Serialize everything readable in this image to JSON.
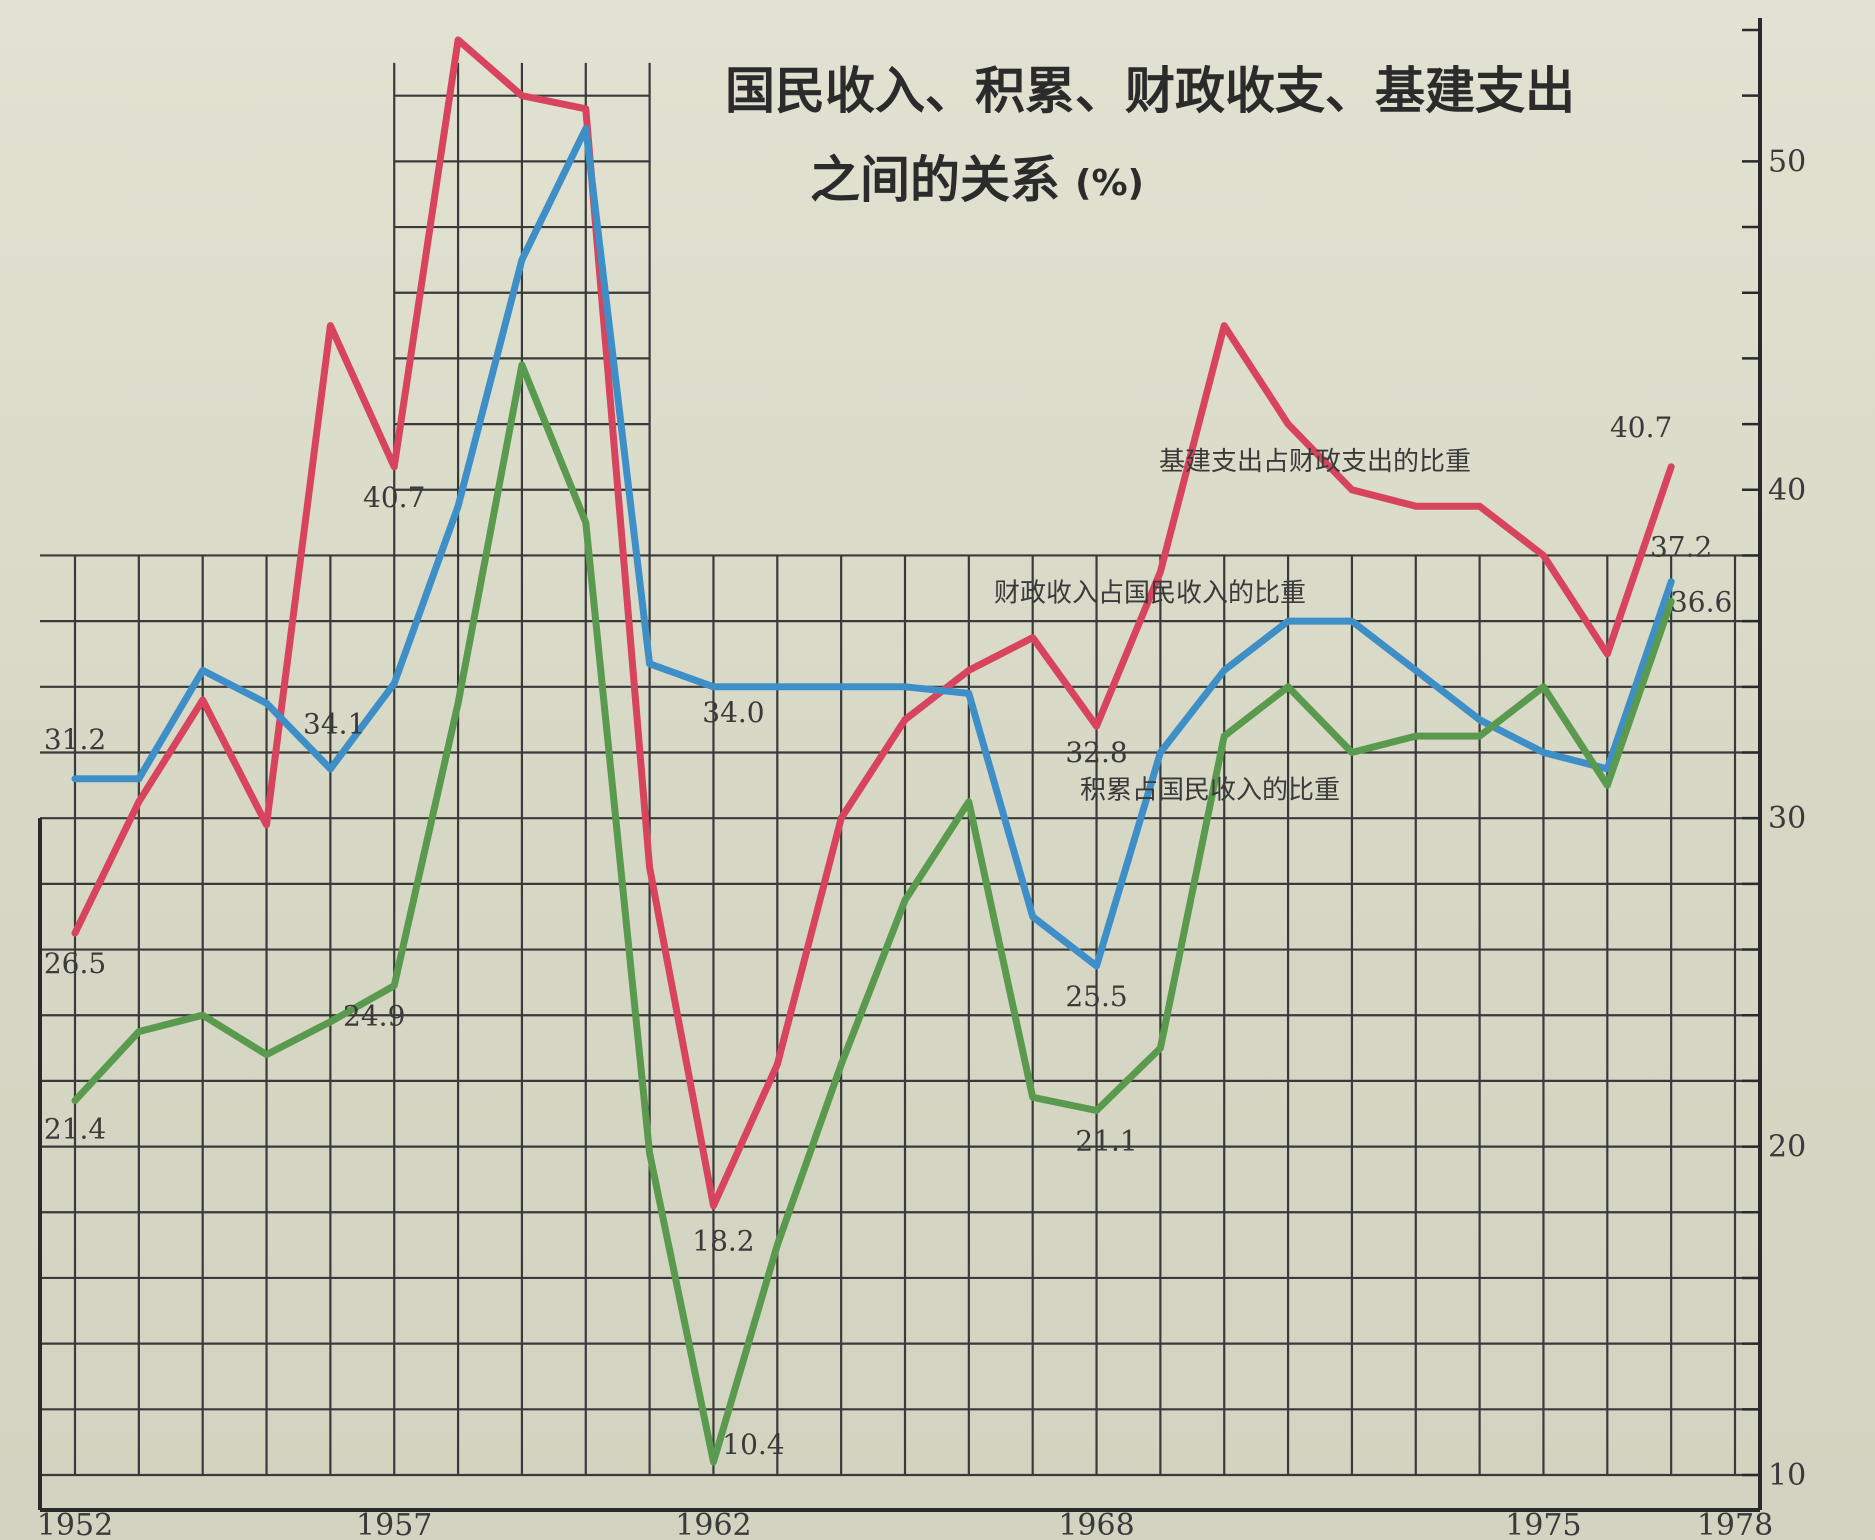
{
  "title": {
    "line1": "国民收入、积累、财政收支、基建支出",
    "line2": "之间的关系",
    "unit": "(%)"
  },
  "chart_data": {
    "type": "line",
    "title": "国民收入、积累、财政收支、基建支出之间的关系",
    "unit": "(%)",
    "x_tick_labels": [
      "1952",
      "1957",
      "1962",
      "1968",
      "1975",
      "1978"
    ],
    "x_ticks": [
      1952,
      1957,
      1962,
      1968,
      1975,
      1978
    ],
    "y_tick_labels": [
      "10",
      "20",
      "30",
      "40",
      "50"
    ],
    "y_ticks": [
      10,
      20,
      30,
      40,
      50
    ],
    "ylim": [
      10,
      54
    ],
    "xlim": [
      1952,
      1978
    ],
    "grid": true,
    "x": [
      1952,
      1953,
      1954,
      1955,
      1956,
      1957,
      1958,
      1959,
      1960,
      1961,
      1962,
      1963,
      1964,
      1965,
      1966,
      1967,
      1968,
      1969,
      1970,
      1971,
      1972,
      1973,
      1974,
      1975,
      1976,
      1977
    ],
    "series": [
      {
        "name": "基建支出占财政支出的比重",
        "color": "#d8445e",
        "values": [
          26.5,
          30.5,
          33.6,
          29.8,
          45.0,
          40.7,
          53.7,
          52.0,
          51.6,
          28.5,
          18.2,
          22.5,
          30.0,
          33.0,
          34.5,
          35.5,
          32.8,
          37.5,
          45.0,
          42.0,
          40.0,
          39.5,
          39.5,
          38.0,
          35.0,
          40.7
        ]
      },
      {
        "name": "财政收入占国民收入的比重",
        "color": "#3e8fc8",
        "values": [
          31.2,
          31.2,
          34.5,
          33.5,
          31.5,
          34.1,
          39.5,
          47.0,
          51.0,
          34.7,
          34.0,
          34.0,
          34.0,
          34.0,
          33.8,
          27.0,
          25.5,
          32.0,
          34.5,
          36.0,
          36.0,
          34.5,
          33.0,
          32.0,
          31.5,
          37.2
        ]
      },
      {
        "name": "积累占国民收入的比重",
        "color": "#5a9a4e",
        "values": [
          21.4,
          23.5,
          24.0,
          22.8,
          23.8,
          24.9,
          33.5,
          43.8,
          39.0,
          19.8,
          10.4,
          17.0,
          22.5,
          27.5,
          30.5,
          21.5,
          21.1,
          23.0,
          32.5,
          34.0,
          32.0,
          32.5,
          32.5,
          34.0,
          31.0,
          36.6
        ]
      }
    ],
    "data_labels": [
      {
        "series": 0,
        "x": 1952,
        "y": 26.5,
        "text": "26.5"
      },
      {
        "series": 0,
        "x": 1957,
        "y": 40.7,
        "text": "40.7"
      },
      {
        "series": 0,
        "x": 1962,
        "y": 18.2,
        "text": "18.2"
      },
      {
        "series": 0,
        "x": 1968,
        "y": 32.8,
        "text": "32.8"
      },
      {
        "series": 0,
        "x": 1977,
        "y": 40.7,
        "text": "40.7"
      },
      {
        "series": 1,
        "x": 1952,
        "y": 31.2,
        "text": "31.2"
      },
      {
        "series": 1,
        "x": 1957,
        "y": 34.1,
        "text": "34.1"
      },
      {
        "series": 1,
        "x": 1962,
        "y": 34.0,
        "text": "34.0"
      },
      {
        "series": 1,
        "x": 1968,
        "y": 25.5,
        "text": "25.5"
      },
      {
        "series": 1,
        "x": 1977,
        "y": 37.2,
        "text": "37.2"
      },
      {
        "series": 2,
        "x": 1952,
        "y": 21.4,
        "text": "21.4"
      },
      {
        "series": 2,
        "x": 1957,
        "y": 24.9,
        "text": "24.9"
      },
      {
        "series": 2,
        "x": 1962,
        "y": 10.4,
        "text": "10.4"
      },
      {
        "series": 2,
        "x": 1968,
        "y": 21.1,
        "text": "21.1"
      },
      {
        "series": 2,
        "x": 1977,
        "y": 36.6,
        "text": "36.6"
      }
    ]
  }
}
